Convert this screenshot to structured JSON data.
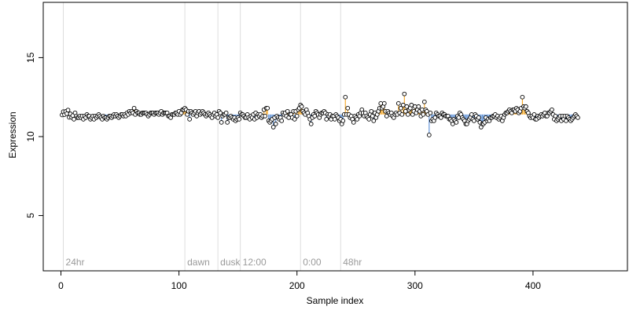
{
  "chart_data": {
    "type": "scatter",
    "title": "",
    "xlabel": "Sample index",
    "ylabel": "Expression",
    "xlim": [
      -15,
      480
    ],
    "ylim": [
      1.5,
      18.5
    ],
    "x_ticks": [
      0,
      100,
      200,
      300,
      400
    ],
    "y_ticks": [
      5,
      10,
      15
    ],
    "grid": false,
    "legend": "none",
    "baseline": 11.4,
    "colors": {
      "point_fill": "#ffffff",
      "point_stroke": "#000000",
      "above_mean_segment": "#f5a623",
      "below_mean_segment": "#5b8fd6",
      "vertical_line": "#dddddd",
      "vertical_label": "#9a9a9a"
    },
    "vertical_markers": [
      {
        "x": 2,
        "label": "24hr"
      },
      {
        "x": 105,
        "label": "dawn"
      },
      {
        "x": 133,
        "label": "dusk"
      },
      {
        "x": 152,
        "label": "12:00"
      },
      {
        "x": 203,
        "label": "0:00"
      },
      {
        "x": 237,
        "label": "48hr"
      }
    ],
    "series": [
      {
        "x_start": 1,
        "x_step": 1,
        "values": [
          11.37,
          11.58,
          11.39,
          11.59,
          11.45,
          11.68,
          11.22,
          11.44,
          11.22,
          11.33,
          11.1,
          11.5,
          11.3,
          11.2,
          11.2,
          11.3,
          11.2,
          11.3,
          11.1,
          11.3,
          11.2,
          11.4,
          11.3,
          11.3,
          11.1,
          11.2,
          11.3,
          11.1,
          11.3,
          11.2,
          11.3,
          11.4,
          11.3,
          11.2,
          11.1,
          11.3,
          11.2,
          11.2,
          11.1,
          11.2,
          11.3,
          11.3,
          11.2,
          11.3,
          11.4,
          11.3,
          11.4,
          11.3,
          11.2,
          11.3,
          11.4,
          11.4,
          11.3,
          11.4,
          11.3,
          11.5,
          11.4,
          11.6,
          11.5,
          11.6,
          11.5,
          11.8,
          11.4,
          11.6,
          11.5,
          11.5,
          11.4,
          11.4,
          11.5,
          11.5,
          11.5,
          11.5,
          11.4,
          11.3,
          11.4,
          11.5,
          11.5,
          11.5,
          11.4,
          11.5,
          11.5,
          11.5,
          11.4,
          11.5,
          11.6,
          11.4,
          11.5,
          11.5,
          11.5,
          11.5,
          11.3,
          11.3,
          11.2,
          11.4,
          11.4,
          11.4,
          11.5,
          11.5,
          11.4,
          11.6,
          11.4,
          11.5,
          11.7,
          11.7,
          11.8,
          11.7,
          11.4,
          11.6,
          11.1,
          11.6,
          11.5,
          11.4,
          11.5,
          11.6,
          11.3,
          11.5,
          11.6,
          11.4,
          11.5,
          11.6,
          11.5,
          11.4,
          11.3,
          11.4,
          11.5,
          11.4,
          11.3,
          11.2,
          11.4,
          11.5,
          11.3,
          11.4,
          11.2,
          11.6,
          11.5,
          10.9,
          11.3,
          11.4,
          11.4,
          11.5,
          10.9,
          11.2,
          11.2,
          11.3,
          11.2,
          11.1,
          11.2,
          11.0,
          11.1,
          11.2,
          11.1,
          11.5,
          11.4,
          11.4,
          11.3,
          11.2,
          11.2,
          11.4,
          11.2,
          11.1,
          11.3,
          11.2,
          11.4,
          11.1,
          11.5,
          11.2,
          11.4,
          11.3,
          11.4,
          11.2,
          11.3,
          11.7,
          11.3,
          11.8,
          11.8,
          11.0,
          10.9,
          11.0,
          11.1,
          10.6,
          11.2,
          10.8,
          11.3,
          11.2,
          11.1,
          11.2,
          11.0,
          11.5,
          11.4,
          11.5,
          11.3,
          11.6,
          11.2,
          11.4,
          11.4,
          11.2,
          11.6,
          11.1,
          11.6,
          11.3,
          11.7,
          11.8,
          12.0,
          11.9,
          11.6,
          11.5,
          11.4,
          11.7,
          11.5,
          11.3,
          11.1,
          10.8,
          11.2,
          11.4,
          11.3,
          11.6,
          11.5,
          11.4,
          11.2,
          11.4,
          11.5,
          11.5,
          11.6,
          11.5,
          11.1,
          11.4,
          11.3,
          11.4,
          11.1,
          11.3,
          11.3,
          11.1,
          11.4,
          11.3,
          11.2,
          11.0,
          11.1,
          10.8,
          11.0,
          11.4,
          12.5,
          11.4,
          11.8,
          11.4,
          11.2,
          11.3,
          11.1,
          10.9,
          11.3,
          11.2,
          11.1,
          11.4,
          11.3,
          11.5,
          11.7,
          11.5,
          11.3,
          11.5,
          11.3,
          11.2,
          11.1,
          11.4,
          11.6,
          11.3,
          11.0,
          11.5,
          11.2,
          11.4,
          11.6,
          11.8,
          12.1,
          11.8,
          11.9,
          12.1,
          11.6,
          11.3,
          11.6,
          11.5,
          11.4,
          11.5,
          11.3,
          11.2,
          11.4,
          11.5,
          11.4,
          12.1,
          11.5,
          11.8,
          11.4,
          12.0,
          12.7,
          11.6,
          11.9,
          11.4,
          11.7,
          11.8,
          12.0,
          11.4,
          11.6,
          11.9,
          11.5,
          11.7,
          11.9,
          11.6,
          11.3,
          11.7,
          11.4,
          12.2,
          11.7,
          11.6,
          11.4,
          10.1,
          11.5,
          11.0,
          11.1,
          11.0,
          11.2,
          11.5,
          11.4,
          11.3,
          11.3,
          11.2,
          11.5,
          11.4,
          11.4,
          11.3,
          11.3,
          11.3,
          11.1,
          11.1,
          11.0,
          10.8,
          11.1,
          11.0,
          10.9,
          11.3,
          11.2,
          11.5,
          11.4,
          11.2,
          11.1,
          11.0,
          10.8,
          10.8,
          11.0,
          11.1,
          11.2,
          11.4,
          11.1,
          11.0,
          11.4,
          11.3,
          11.1,
          11.2,
          10.9,
          10.6,
          10.8,
          10.8,
          10.9,
          11.2,
          11.0,
          11.1,
          11.0,
          11.2,
          11.2,
          11.3,
          11.3,
          11.4,
          11.2,
          11.3,
          11.1,
          11.2,
          11.3,
          11.0,
          11.2,
          11.4,
          11.5,
          11.5,
          11.6,
          11.7,
          11.6,
          11.5,
          11.7,
          11.7,
          11.6,
          11.8,
          11.7,
          11.5,
          11.6,
          11.8,
          12.5,
          11.9,
          11.8,
          11.9,
          11.6,
          11.5,
          11.3,
          11.2,
          11.3,
          11.2,
          11.4,
          11.1,
          11.1,
          11.3,
          11.2,
          11.3,
          11.4,
          11.3,
          11.4,
          11.5,
          11.3,
          11.3,
          11.5,
          11.5,
          11.6,
          11.7,
          11.4,
          11.1,
          11.3,
          11.0,
          11.1,
          11.2,
          11.3,
          11.0,
          11.3,
          11.1,
          11.3,
          11.0,
          11.3,
          11.2,
          11.1,
          11.0,
          11.1,
          11.2,
          11.3,
          11.4,
          11.3,
          11.2
        ]
      }
    ]
  }
}
